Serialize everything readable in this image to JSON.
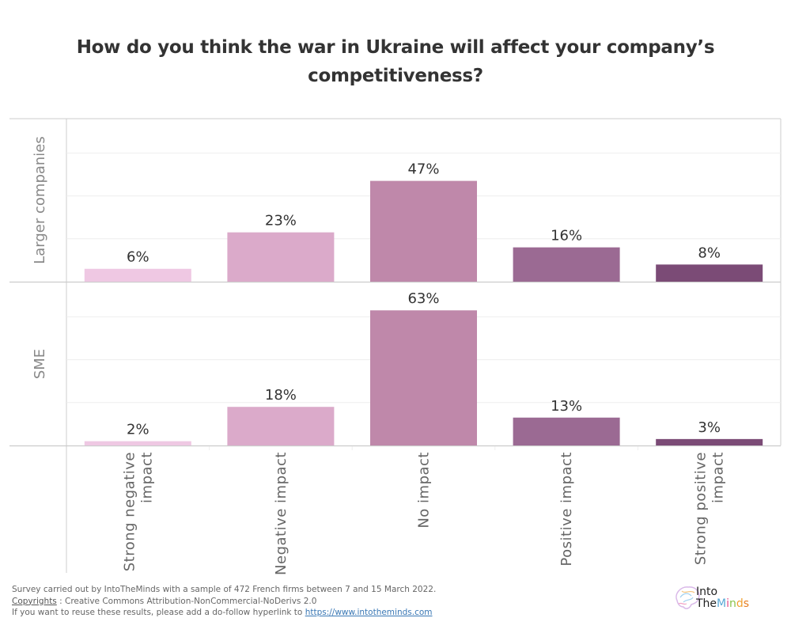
{
  "title": {
    "line1": "How do you think the war in Ukraine will affect your company’s",
    "line2": "competitiveness?"
  },
  "chart_data": {
    "type": "bar",
    "title": "How do you think the war in Ukraine will affect your company’s competitiveness?",
    "xlabel": "",
    "ylabel": "",
    "ylim": [
      0,
      76
    ],
    "grid": true,
    "value_format": "percent",
    "categories": [
      "Strong negative impact",
      "Negative impact",
      "No impact",
      "Positive impact",
      "Strong positive impact"
    ],
    "category_label_lines": [
      [
        "Strong negative",
        "impact"
      ],
      [
        "Negative impact"
      ],
      [
        "No impact"
      ],
      [
        "Positive impact"
      ],
      [
        "Strong positive",
        "impact"
      ]
    ],
    "category_colors": [
      "#efc8e3",
      "#dbaaca",
      "#bf88aa",
      "#9b6a93",
      "#7b4b76"
    ],
    "series": [
      {
        "name": "Larger companies",
        "values": [
          6,
          23,
          47,
          16,
          8
        ]
      },
      {
        "name": "SME",
        "values": [
          2,
          18,
          63,
          13,
          3
        ]
      }
    ]
  },
  "footer": {
    "line1": "Survey carried out by  IntoTheMinds with a sample of 472 French firms between 7 and 15 March 2022.",
    "copyright_label": "Copyrights",
    "copyright_text": " : Creative Commons Attribution-NonCommercial-NoDerivs 2.0",
    "reuse_text": "If you want to reuse these results, please add a do-follow hyperlink to ",
    "link_text": "https://www.intotheminds.com"
  },
  "logo": {
    "line1": "Into",
    "line2_a": "The",
    "line2_m": "M",
    "line2_i": "i",
    "line2_n": "n",
    "line2_d": "d",
    "line2_s": "s"
  }
}
